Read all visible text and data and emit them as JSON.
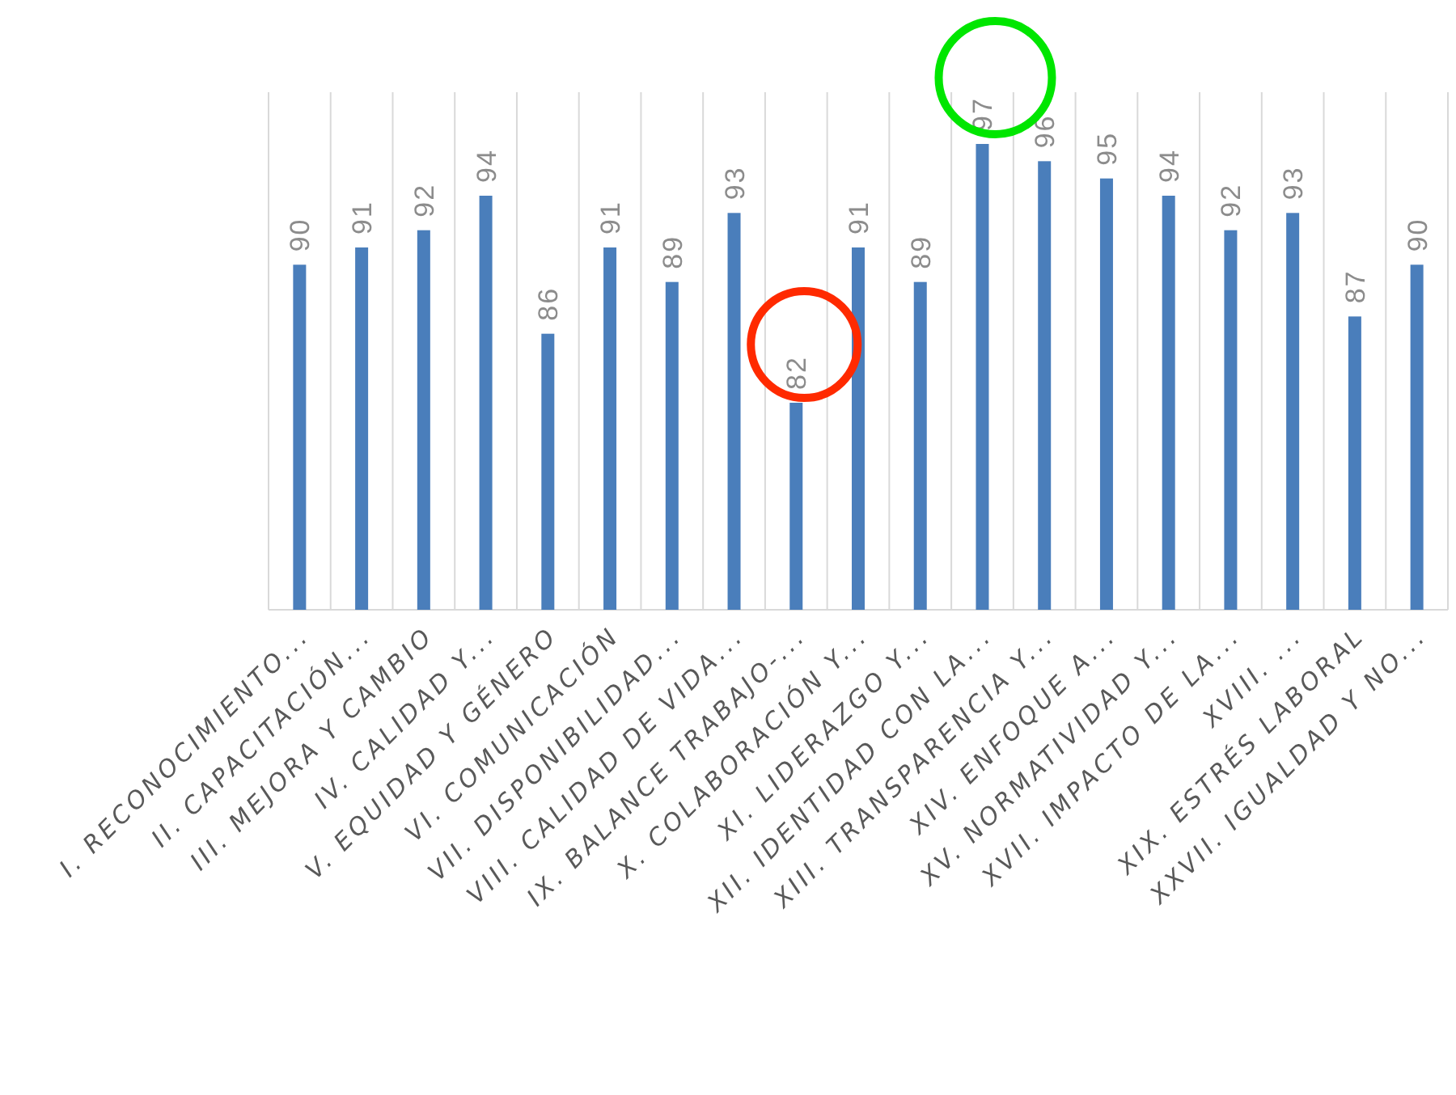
{
  "chart_data": {
    "type": "bar",
    "categories": [
      "I. RECONOCIMIENTO...",
      "II. CAPACITACIÓN...",
      "III. MEJORA Y CAMBIO",
      "IV. CALIDAD Y...",
      "V. EQUIDAD Y GÉNERO",
      "VI. COMUNICACIÓN",
      "VII. DISPONIBILIDAD...",
      "VIII. CALIDAD DE VIDA...",
      "IX. BALANCE TRABAJO-...",
      "X. COLABORACIÓN Y...",
      "XI. LIDERAZGO Y...",
      "XII. IDENTIDAD CON LA...",
      "XIII. TRANSPARENCIA Y...",
      "XIV. ENFOQUE A...",
      "XV. NORMATIVIDAD Y...",
      "XVII. IMPACTO DE LA...",
      "XVIII. ...",
      "XIX. ESTRÉS LABORAL",
      "XXVII. IGUALDAD Y NO..."
    ],
    "values": [
      90,
      91,
      92,
      94,
      86,
      91,
      89,
      93,
      82,
      91,
      89,
      97,
      96,
      95,
      94,
      92,
      93,
      87,
      90
    ],
    "color": "#4a7ebb",
    "ylim": [
      70,
      100
    ],
    "data_labels": true,
    "grid": "x",
    "tick_labels": "x"
  }
}
